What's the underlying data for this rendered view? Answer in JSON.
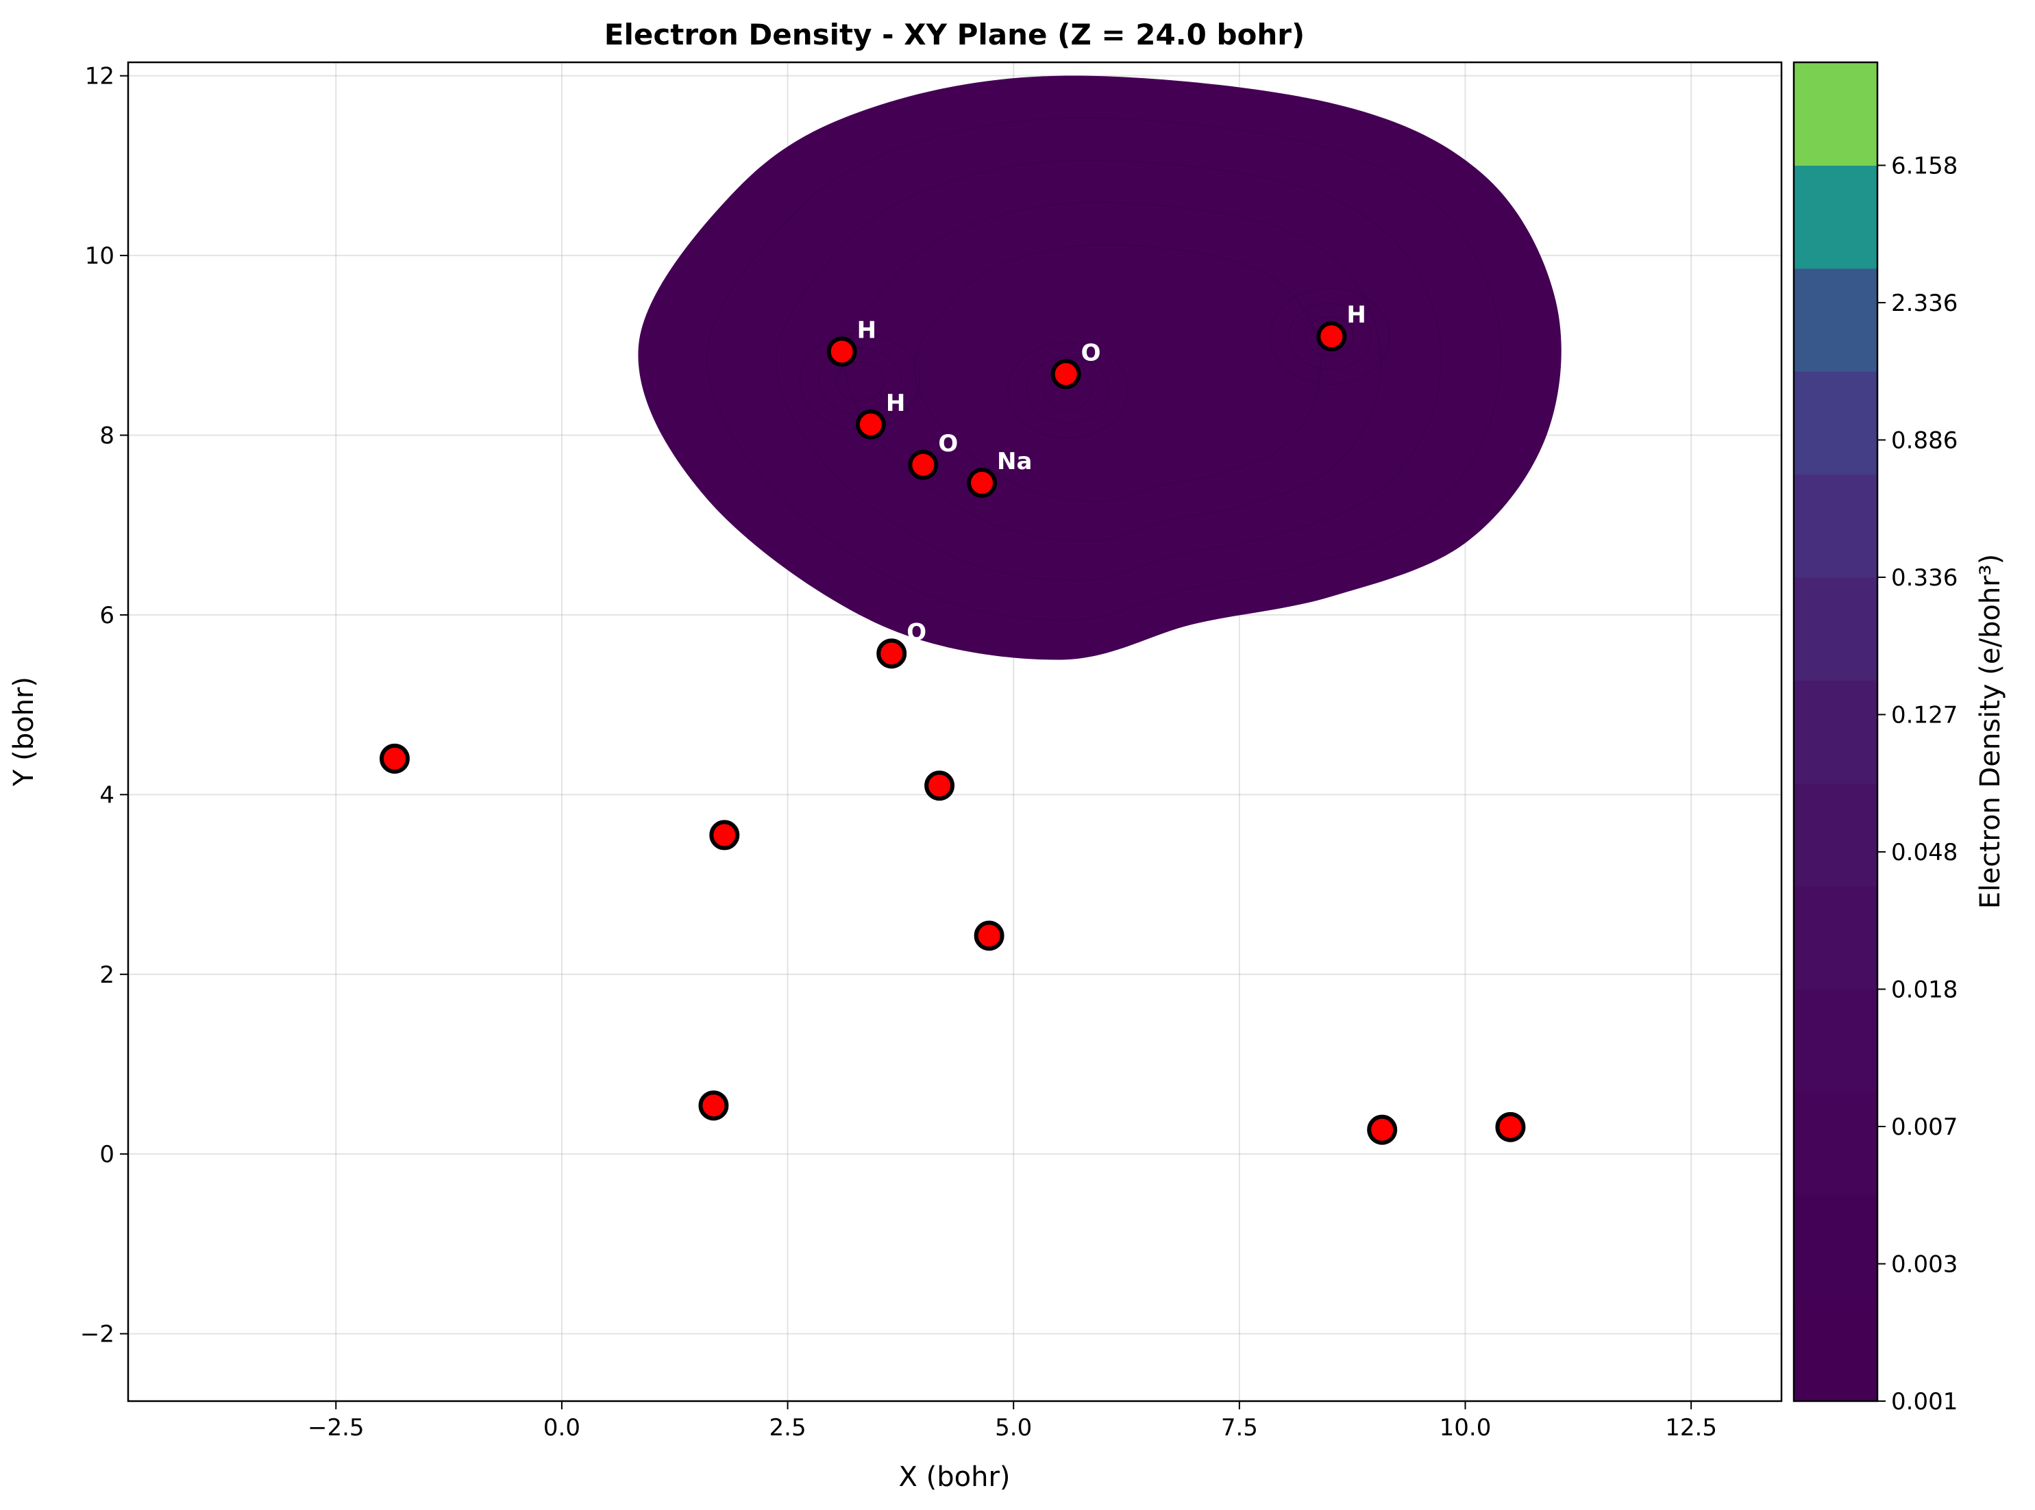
{
  "chart_data": {
    "type": "contour",
    "title": "Electron Density - XY Plane (Z = 24.0 bohr)",
    "xlabel": "X (bohr)",
    "ylabel": "Y (bohr)",
    "xlim": [
      -4.8,
      13.5
    ],
    "ylim": [
      -2.75,
      12.15
    ],
    "x_ticks": [
      -2.5,
      0.0,
      2.5,
      5.0,
      7.5,
      10.0,
      12.5
    ],
    "x_tick_labels": [
      "−2.5",
      "0.0",
      "2.5",
      "5.0",
      "7.5",
      "10.0",
      "12.5"
    ],
    "y_ticks": [
      -2,
      0,
      2,
      4,
      6,
      8,
      10,
      12
    ],
    "y_tick_labels": [
      "−2",
      "0",
      "2",
      "4",
      "6",
      "8",
      "10",
      "12"
    ],
    "grid": true,
    "colorbar": {
      "label": "Electron Density (e/bohr³)",
      "tick_labels": [
        "0.001",
        "0.003",
        "0.007",
        "0.018",
        "0.048",
        "0.127",
        "0.336",
        "0.886",
        "2.336",
        "6.158"
      ],
      "band_colors": [
        "#440154",
        "#440256",
        "#450559",
        "#46085c",
        "#470d60",
        "#471365",
        "#481a6c",
        "#482475",
        "#472f7d",
        "#433e85",
        "#38588c",
        "#1f948c",
        "#7ad151"
      ]
    },
    "density_region": {
      "color": "#440154",
      "outline": [
        [
          5.5,
          5.5
        ],
        [
          7.0,
          5.9
        ],
        [
          8.5,
          6.2
        ],
        [
          10.0,
          6.8
        ],
        [
          10.9,
          8.0
        ],
        [
          11.0,
          9.5
        ],
        [
          10.2,
          10.9
        ],
        [
          8.5,
          11.7
        ],
        [
          5.5,
          12.0
        ],
        [
          3.3,
          11.6
        ],
        [
          1.9,
          10.7
        ],
        [
          0.85,
          9.0
        ],
        [
          1.6,
          7.3
        ],
        [
          3.5,
          5.9
        ]
      ],
      "maxima": [
        [
          3.3,
          8.6
        ],
        [
          5.6,
          8.5
        ],
        [
          8.5,
          9.1
        ]
      ]
    },
    "atoms": [
      {
        "x": 3.1,
        "y": 8.93,
        "label": "H"
      },
      {
        "x": 5.58,
        "y": 8.68,
        "label": "O"
      },
      {
        "x": 8.52,
        "y": 9.1,
        "label": "H"
      },
      {
        "x": 3.42,
        "y": 8.12,
        "label": "H"
      },
      {
        "x": 4.0,
        "y": 7.67,
        "label": "O"
      },
      {
        "x": 4.65,
        "y": 7.47,
        "label": "Na"
      },
      {
        "x": 3.65,
        "y": 5.57,
        "label": "O"
      },
      {
        "x": -1.85,
        "y": 4.4,
        "label": ""
      },
      {
        "x": 1.8,
        "y": 3.55,
        "label": ""
      },
      {
        "x": 4.18,
        "y": 4.1,
        "label": ""
      },
      {
        "x": 4.73,
        "y": 2.43,
        "label": ""
      },
      {
        "x": 1.68,
        "y": 0.54,
        "label": ""
      },
      {
        "x": 9.08,
        "y": 0.27,
        "label": ""
      },
      {
        "x": 10.5,
        "y": 0.3,
        "label": ""
      }
    ],
    "atom_fill": "#ff0000",
    "atom_edge": "#000000"
  }
}
